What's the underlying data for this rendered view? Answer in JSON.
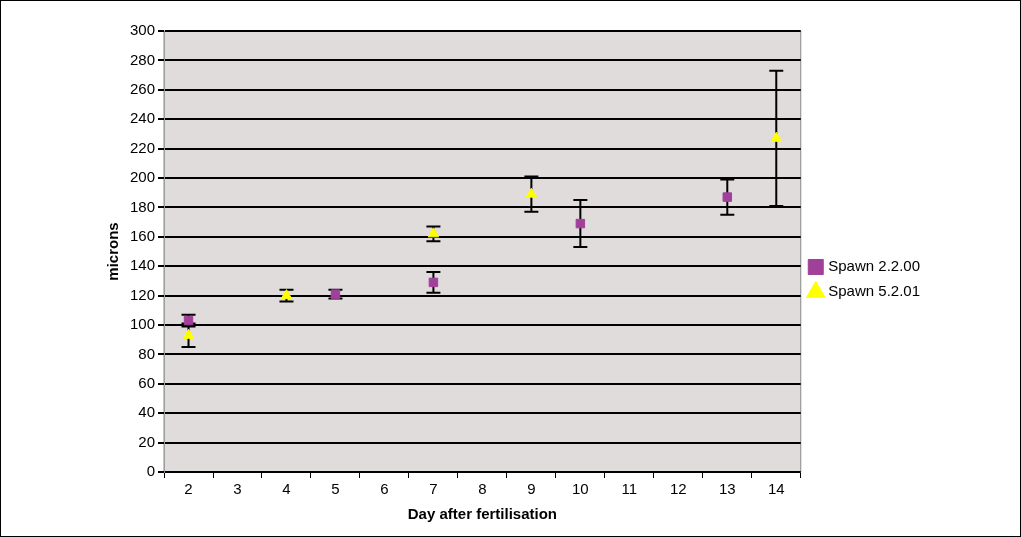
{
  "chart_data": {
    "type": "scatter",
    "xlabel": "Day after fertilisation",
    "ylabel": "microns",
    "categories": [
      "2",
      "3",
      "4",
      "5",
      "6",
      "7",
      "8",
      "9",
      "10",
      "11",
      "12",
      "13",
      "14"
    ],
    "series": [
      {
        "name": "Spawn 2.2.00",
        "color": "#a0409a",
        "marker": "square",
        "values": [
          103,
          null,
          null,
          121,
          null,
          129,
          null,
          null,
          169,
          null,
          null,
          187,
          null
        ],
        "errors": [
          4,
          null,
          null,
          3,
          null,
          7,
          null,
          null,
          16,
          null,
          null,
          12,
          null
        ]
      },
      {
        "name": "Spawn 5.2.01",
        "color": "#ffff00",
        "marker": "triangle",
        "values": [
          93,
          null,
          120,
          null,
          null,
          162,
          null,
          189,
          null,
          null,
          null,
          null,
          227
        ],
        "errors": [
          8,
          null,
          4,
          null,
          null,
          5,
          null,
          12,
          null,
          null,
          null,
          null,
          46
        ]
      }
    ],
    "ylim": [
      0,
      300
    ],
    "yticks": [
      0,
      20,
      40,
      60,
      80,
      100,
      120,
      140,
      160,
      180,
      200,
      220,
      240,
      260,
      280,
      300
    ],
    "grid": "y",
    "legend": "right"
  }
}
